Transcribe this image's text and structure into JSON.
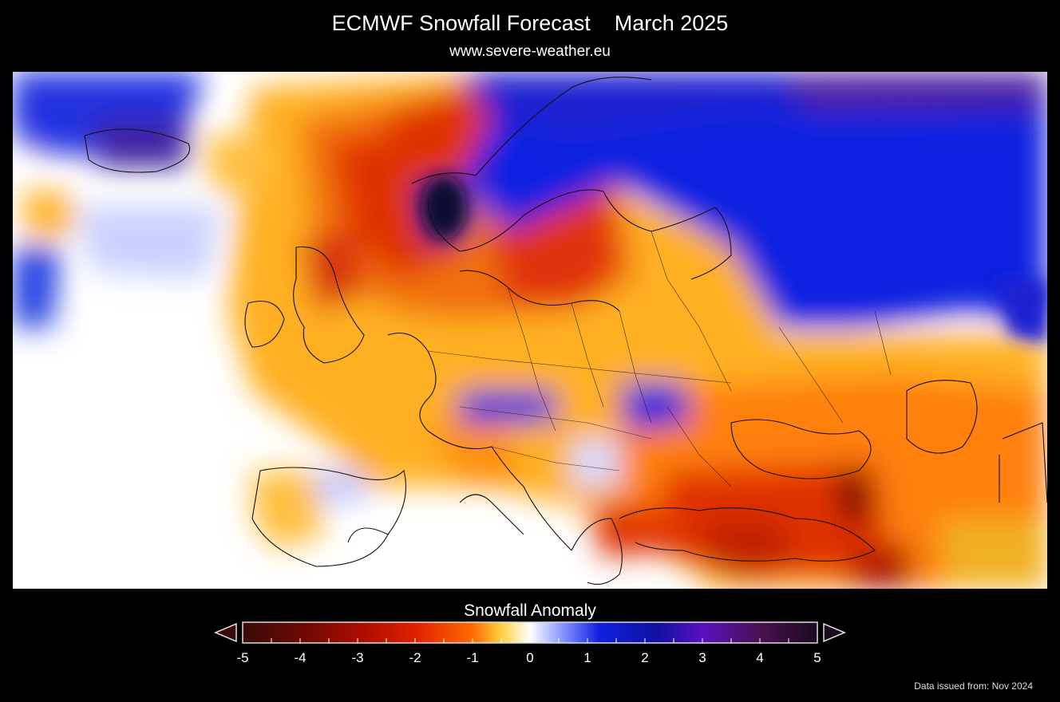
{
  "header": {
    "title": "ECMWF Snowfall Forecast    March 2025",
    "subtitle": "www.severe-weather.eu"
  },
  "legend": {
    "title": "Snowfall Anomaly",
    "ticks": [
      "-5",
      "-4",
      "-3",
      "-2",
      "-1",
      "0",
      "1",
      "2",
      "3",
      "4",
      "5"
    ],
    "min": -5,
    "max": 5
  },
  "footer": {
    "issued": "Data issued from: Nov 2024"
  },
  "colors": {
    "background": "#000000",
    "strong_deficit": "#3a0a0a",
    "deficit": "#e02000",
    "mild_deficit": "#ffb000",
    "neutral": "#ffffff",
    "surplus": "#0018e0",
    "strong_surplus": "#2a0a3a"
  }
}
